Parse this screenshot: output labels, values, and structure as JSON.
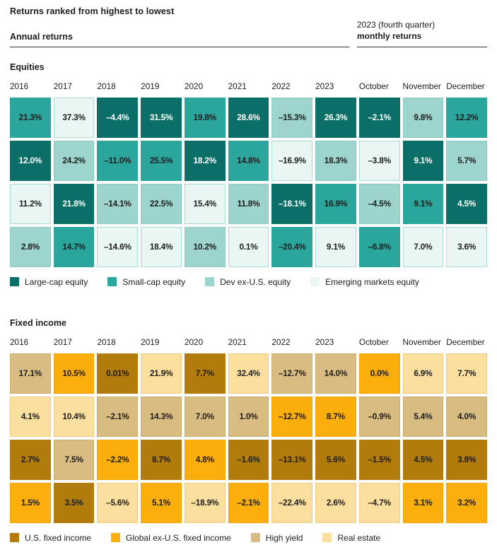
{
  "header": {
    "title": "Returns ranked from highest to lowest",
    "left_label": "Annual returns",
    "right_label_line1": "2023 (fourth quarter)",
    "right_label_line2": "monthly returns"
  },
  "colors": {
    "large": {
      "bg": "#0B6E67",
      "border": "#0B6E67",
      "text": "#FFFFFF"
    },
    "small": {
      "bg": "#2BA69C",
      "border": "#2BA69C",
      "text": "#1D1D1D"
    },
    "dev": {
      "bg": "#9DD4CD",
      "border": "#8BCBC3",
      "text": "#1D1D1D"
    },
    "em": {
      "bg": "#E9F6F3",
      "border": "#A9DBD3",
      "text": "#1D1D1D"
    },
    "us": {
      "bg": "#B17C0B",
      "border": "#B17C0B",
      "text": "#1D1D1D"
    },
    "gl": {
      "bg": "#FCAE0C",
      "border": "#F2A403",
      "text": "#1D1D1D"
    },
    "hy": {
      "bg": "#D9BC82",
      "border": "#CBAD6F",
      "text": "#1D1D1D"
    },
    "re": {
      "bg": "#FBDF9E",
      "border": "#EFCD85",
      "text": "#1D1D1D"
    }
  },
  "chart_data": {
    "type": "heatmap",
    "title": "Returns ranked from highest to lowest",
    "subtitle_left": "Annual returns",
    "subtitle_right": "2023 (fourth quarter) monthly returns",
    "columns": [
      "2016",
      "2017",
      "2018",
      "2019",
      "2020",
      "2021",
      "2022",
      "2023",
      "October",
      "November",
      "December"
    ],
    "sections": [
      {
        "label": "Equities",
        "legend": [
          {
            "key": "large",
            "label": "Large-cap equity"
          },
          {
            "key": "small",
            "label": "Small-cap equity"
          },
          {
            "key": "dev",
            "label": "Dev ex-U.S. equity"
          },
          {
            "key": "em",
            "label": "Emerging markets equity"
          }
        ],
        "rows": [
          [
            {
              "v": "21.3%",
              "k": "small"
            },
            {
              "v": "37.3%",
              "k": "em"
            },
            {
              "v": "–4.4%",
              "k": "large"
            },
            {
              "v": "31.5%",
              "k": "large"
            },
            {
              "v": "19.8%",
              "k": "small"
            },
            {
              "v": "28.6%",
              "k": "large"
            },
            {
              "v": "–15.3%",
              "k": "dev"
            },
            {
              "v": "26.3%",
              "k": "large"
            },
            {
              "v": "–2.1%",
              "k": "large"
            },
            {
              "v": "9.8%",
              "k": "dev"
            },
            {
              "v": "12.2%",
              "k": "small"
            }
          ],
          [
            {
              "v": "12.0%",
              "k": "large"
            },
            {
              "v": "24.2%",
              "k": "dev"
            },
            {
              "v": "–11.0%",
              "k": "small"
            },
            {
              "v": "25.5%",
              "k": "small"
            },
            {
              "v": "18.2%",
              "k": "large"
            },
            {
              "v": "14.8%",
              "k": "small"
            },
            {
              "v": "–16.9%",
              "k": "em"
            },
            {
              "v": "18.3%",
              "k": "dev"
            },
            {
              "v": "–3.8%",
              "k": "em"
            },
            {
              "v": "9.1%",
              "k": "large"
            },
            {
              "v": "5.7%",
              "k": "dev"
            }
          ],
          [
            {
              "v": "11.2%",
              "k": "em"
            },
            {
              "v": "21.8%",
              "k": "large"
            },
            {
              "v": "–14.1%",
              "k": "dev"
            },
            {
              "v": "22.5%",
              "k": "dev"
            },
            {
              "v": "15.4%",
              "k": "em"
            },
            {
              "v": "11.8%",
              "k": "dev"
            },
            {
              "v": "–18.1%",
              "k": "large"
            },
            {
              "v": "16.9%",
              "k": "small"
            },
            {
              "v": "–4.5%",
              "k": "dev"
            },
            {
              "v": "9.1%",
              "k": "small"
            },
            {
              "v": "4.5%",
              "k": "large"
            }
          ],
          [
            {
              "v": "2.8%",
              "k": "dev"
            },
            {
              "v": "14.7%",
              "k": "small"
            },
            {
              "v": "–14.6%",
              "k": "em"
            },
            {
              "v": "18.4%",
              "k": "em"
            },
            {
              "v": "10.2%",
              "k": "dev"
            },
            {
              "v": "0.1%",
              "k": "em"
            },
            {
              "v": "–20.4%",
              "k": "small"
            },
            {
              "v": "9.1%",
              "k": "em"
            },
            {
              "v": "–6.8%",
              "k": "small"
            },
            {
              "v": "7.0%",
              "k": "em"
            },
            {
              "v": "3.6%",
              "k": "em"
            }
          ]
        ]
      },
      {
        "label": "Fixed income",
        "legend": [
          {
            "key": "us",
            "label": "U.S. fixed income"
          },
          {
            "key": "gl",
            "label": "Global ex-U.S. fixed income"
          },
          {
            "key": "hy",
            "label": "High yield"
          },
          {
            "key": "re",
            "label": "Real estate"
          }
        ],
        "rows": [
          [
            {
              "v": "17.1%",
              "k": "hy"
            },
            {
              "v": "10.5%",
              "k": "gl"
            },
            {
              "v": "0.01%",
              "k": "us"
            },
            {
              "v": "21.9%",
              "k": "re"
            },
            {
              "v": "7.7%",
              "k": "us"
            },
            {
              "v": "32.4%",
              "k": "re"
            },
            {
              "v": "–12.7%",
              "k": "hy"
            },
            {
              "v": "14.0%",
              "k": "hy"
            },
            {
              "v": "0.0%",
              "k": "gl"
            },
            {
              "v": "6.9%",
              "k": "re"
            },
            {
              "v": "7.7%",
              "k": "re"
            }
          ],
          [
            {
              "v": "4.1%",
              "k": "re"
            },
            {
              "v": "10.4%",
              "k": "re"
            },
            {
              "v": "–2.1%",
              "k": "hy"
            },
            {
              "v": "14.3%",
              "k": "hy"
            },
            {
              "v": "7.0%",
              "k": "hy"
            },
            {
              "v": "1.0%",
              "k": "hy"
            },
            {
              "v": "–12.7%",
              "k": "gl"
            },
            {
              "v": "8.7%",
              "k": "gl"
            },
            {
              "v": "–0.9%",
              "k": "hy"
            },
            {
              "v": "5.4%",
              "k": "hy"
            },
            {
              "v": "4.0%",
              "k": "hy"
            }
          ],
          [
            {
              "v": "2.7%",
              "k": "us"
            },
            {
              "v": "7.5%",
              "k": "hy"
            },
            {
              "v": "–2.2%",
              "k": "gl"
            },
            {
              "v": "8.7%",
              "k": "us"
            },
            {
              "v": "4.8%",
              "k": "gl"
            },
            {
              "v": "–1.6%",
              "k": "us"
            },
            {
              "v": "–13.1%",
              "k": "us"
            },
            {
              "v": "5.6%",
              "k": "us"
            },
            {
              "v": "–1.5%",
              "k": "us"
            },
            {
              "v": "4.5%",
              "k": "us"
            },
            {
              "v": "3.8%",
              "k": "us"
            }
          ],
          [
            {
              "v": "1.5%",
              "k": "gl"
            },
            {
              "v": "3.5%",
              "k": "us"
            },
            {
              "v": "–5.6%",
              "k": "re"
            },
            {
              "v": "5.1%",
              "k": "gl"
            },
            {
              "v": "–18.9%",
              "k": "re"
            },
            {
              "v": "–2.1%",
              "k": "gl"
            },
            {
              "v": "–22.4%",
              "k": "re"
            },
            {
              "v": "2.6%",
              "k": "re"
            },
            {
              "v": "–4.7%",
              "k": "re"
            },
            {
              "v": "3.1%",
              "k": "gl"
            },
            {
              "v": "3.2%",
              "k": "gl"
            }
          ]
        ]
      }
    ]
  }
}
